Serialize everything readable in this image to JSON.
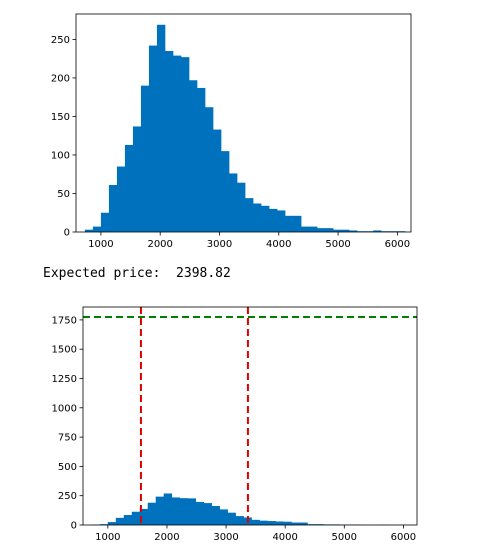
{
  "output_text": "Expected price:  2398.82",
  "colors": {
    "bars": "#0072BD",
    "threshold_line": "#008000",
    "interval_lines": "#E00000"
  },
  "chart_data": [
    {
      "type": "bar",
      "title": "",
      "xlabel": "",
      "ylabel": "",
      "xlim": [
        580,
        6230
      ],
      "ylim": [
        0,
        283
      ],
      "xticks": [
        1000,
        2000,
        3000,
        4000,
        5000,
        6000
      ],
      "yticks": [
        0,
        50,
        100,
        150,
        200,
        250
      ],
      "grid": false,
      "bin_width": 135,
      "bin_edges_start": 730,
      "values": [
        3,
        7,
        25,
        61,
        85,
        113,
        137,
        190,
        242,
        269,
        235,
        229,
        227,
        197,
        187,
        162,
        133,
        105,
        76,
        64,
        44,
        37,
        34,
        30,
        28,
        21,
        21,
        7,
        7,
        5,
        5,
        3,
        3,
        2,
        1,
        1,
        2,
        1,
        1,
        1
      ]
    },
    {
      "type": "bar",
      "title": "",
      "xlabel": "",
      "ylabel": "",
      "xlim": [
        580,
        6230
      ],
      "ylim": [
        0,
        1860
      ],
      "xticks": [
        1000,
        2000,
        3000,
        4000,
        5000,
        6000
      ],
      "yticks": [
        0,
        250,
        500,
        750,
        1000,
        1250,
        1500,
        1750
      ],
      "grid": false,
      "bin_width": 135,
      "bin_edges_start": 730,
      "values": [
        3,
        7,
        25,
        61,
        85,
        113,
        137,
        190,
        242,
        269,
        235,
        229,
        227,
        197,
        187,
        162,
        133,
        105,
        76,
        64,
        44,
        37,
        34,
        30,
        28,
        21,
        21,
        7,
        7,
        5,
        5,
        3,
        3,
        2,
        1,
        1,
        2,
        1,
        1,
        1
      ],
      "hlines": [
        {
          "y": 1775,
          "style": "dashed",
          "color": "green"
        }
      ],
      "vlines": [
        {
          "x": 1560,
          "style": "dashed",
          "color": "red"
        },
        {
          "x": 3370,
          "style": "dashed",
          "color": "red"
        }
      ]
    }
  ]
}
